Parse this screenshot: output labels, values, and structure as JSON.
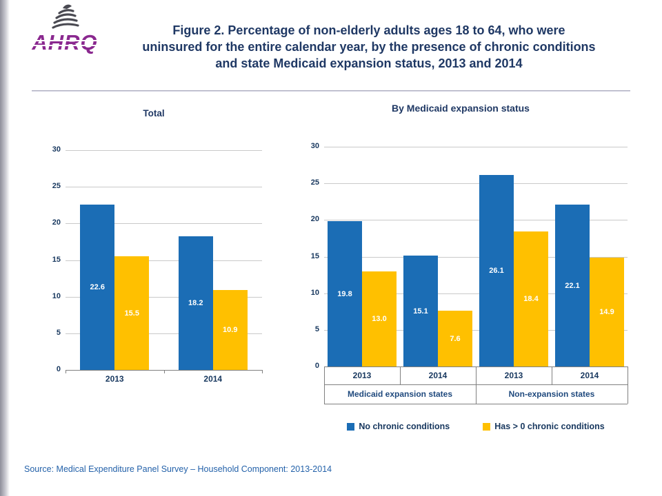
{
  "logo": {
    "agency": "AHRQ"
  },
  "header": {
    "title": "Figure 2. Percentage of non-elderly adults ages 18 to 64, who were uninsured for the entire calendar year, by the presence of chronic conditions and state Medicaid expansion status, 2013 and 2014"
  },
  "colors": {
    "series_blue": "#1B6DB5",
    "series_gold": "#FFC000",
    "title_navy": "#1F3864",
    "axis_text_navy": "#17375E",
    "group_label_blue": "#1F497D",
    "gridline_gray": "#C9C9C9",
    "axis_line_gray": "#7F7F7F",
    "source_blue": "#2361A9",
    "logo_purple": "#8A288F"
  },
  "chart_data": [
    {
      "type": "bar",
      "title": "Total",
      "categories": [
        "2013",
        "2014"
      ],
      "series": [
        {
          "name": "No chronic conditions",
          "color_key": "series_blue",
          "values": [
            22.6,
            18.2
          ],
          "labels": [
            "22.6",
            "18.2"
          ]
        },
        {
          "name": "Has > 0 chronic conditions",
          "color_key": "series_gold",
          "values": [
            15.5,
            10.9
          ],
          "labels": [
            "15.5",
            "10.9"
          ]
        }
      ],
      "ylim": [
        0,
        30
      ],
      "yticks": [
        0,
        5,
        10,
        15,
        20,
        25,
        30
      ],
      "grid": true,
      "xlabel": "",
      "ylabel": ""
    },
    {
      "type": "bar",
      "title": "By Medicaid expansion status",
      "categories": [
        "2013",
        "2014",
        "2013",
        "2014"
      ],
      "group_labels": [
        "Medicaid expansion states",
        "Non-expansion states"
      ],
      "series": [
        {
          "name": "No chronic conditions",
          "color_key": "series_blue",
          "values": [
            19.8,
            15.1,
            26.1,
            22.1
          ],
          "labels": [
            "19.8",
            "15.1",
            "26.1",
            "22.1"
          ]
        },
        {
          "name": "Has > 0 chronic conditions",
          "color_key": "series_gold",
          "values": [
            13.0,
            7.6,
            18.4,
            14.9
          ],
          "labels": [
            "13.0",
            "7.6",
            "18.4",
            "14.9"
          ]
        }
      ],
      "ylim": [
        0,
        30
      ],
      "yticks": [
        0,
        5,
        10,
        15,
        20,
        25,
        30
      ],
      "grid": true,
      "xlabel": "",
      "ylabel": ""
    }
  ],
  "legend": {
    "items": [
      {
        "label": "No chronic conditions",
        "color_key": "series_blue"
      },
      {
        "label": "Has > 0 chronic conditions",
        "color_key": "series_gold"
      }
    ]
  },
  "footer": {
    "source": "Source: Medical Expenditure Panel Survey – Household Component: 2013-2014"
  }
}
